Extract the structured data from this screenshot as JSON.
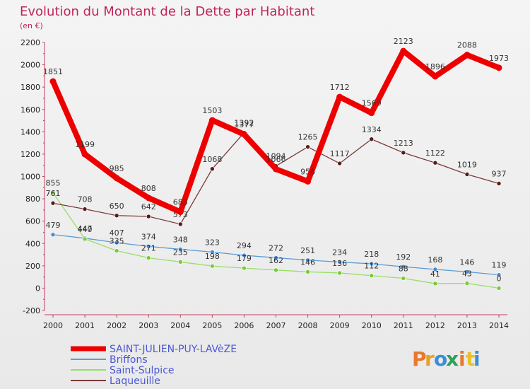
{
  "header": {
    "title": "Evolution du Montant de la Dette par Habitant",
    "unit": "(en €)"
  },
  "brand": {
    "letters": [
      "P",
      "r",
      "o",
      "x",
      "i",
      "t",
      "i"
    ],
    "colors": [
      "#e8792a",
      "#e8a02a",
      "#3a8fd6",
      "#2fa05a",
      "#e8792a",
      "#e8c22a",
      "#3a8fd6"
    ]
  },
  "chart_data": {
    "type": "line",
    "title": "Evolution du Montant de la Dette par Habitant",
    "subtitle": "(en €)",
    "xlabel": "",
    "ylabel": "",
    "x": [
      "2000",
      "2001",
      "2002",
      "2003",
      "2004",
      "2005",
      "2006",
      "2007",
      "2008",
      "2009",
      "2010",
      "2011",
      "2012",
      "2013",
      "2014"
    ],
    "ylim": [
      -200,
      2200
    ],
    "yticks": [
      -200,
      0,
      200,
      400,
      600,
      800,
      1000,
      1200,
      1400,
      1600,
      1800,
      2000,
      2200
    ],
    "grid": false,
    "legend_position": "bottom-left",
    "series": [
      {
        "name": "SAINT-JULIEN-PUY-LAVèZE",
        "color": "#ee0000",
        "point_color": "#ee0000",
        "emphasis": "thick",
        "values": [
          1851,
          1199,
          985,
          808,
          683,
          1503,
          1377,
          1066,
          956,
          1712,
          1569,
          2123,
          1896,
          2088,
          1973
        ],
        "labels": [
          "1851",
          "1199",
          "985",
          "808",
          "683",
          "1503",
          "1377",
          "1066",
          "956",
          "1712",
          "1569",
          "2123",
          "1896",
          "2088",
          "1973"
        ]
      },
      {
        "name": "Briffons",
        "color": "#5b9bd5",
        "point_color": "#4a8ad0",
        "emphasis": "thin",
        "values": [
          479,
          447,
          407,
          374,
          348,
          323,
          294,
          272,
          251,
          234,
          218,
          192,
          168,
          146,
          119
        ],
        "labels": [
          "479",
          "447",
          "407",
          "374",
          "348",
          "323",
          "294",
          "272",
          "251",
          "234",
          "218",
          "192",
          "168",
          "146",
          "119"
        ]
      },
      {
        "name": "Saint-Sulpice",
        "color": "#99dd66",
        "point_color": "#77cc33",
        "emphasis": "thin",
        "values": [
          855,
          440,
          335,
          271,
          235,
          198,
          179,
          162,
          146,
          136,
          112,
          88,
          41,
          43,
          0
        ],
        "labels": [
          "855",
          "440",
          "335",
          "271",
          "235",
          "198",
          "179",
          "162",
          "146",
          "136",
          "112",
          "88",
          "41",
          "43",
          "0"
        ]
      },
      {
        "name": "Laqueuille",
        "color": "#7a3a3a",
        "point_color": "#5a1a1a",
        "emphasis": "thin",
        "values": [
          761,
          708,
          650,
          642,
          573,
          1068,
          1392,
          1094,
          1265,
          1117,
          1334,
          1213,
          1122,
          1019,
          937
        ],
        "labels": [
          "761",
          "708",
          "650",
          "642",
          "573",
          "1068",
          "1392",
          "1094",
          "1265",
          "1117",
          "1334",
          "1213",
          "1122",
          "1019",
          "937"
        ]
      }
    ]
  }
}
